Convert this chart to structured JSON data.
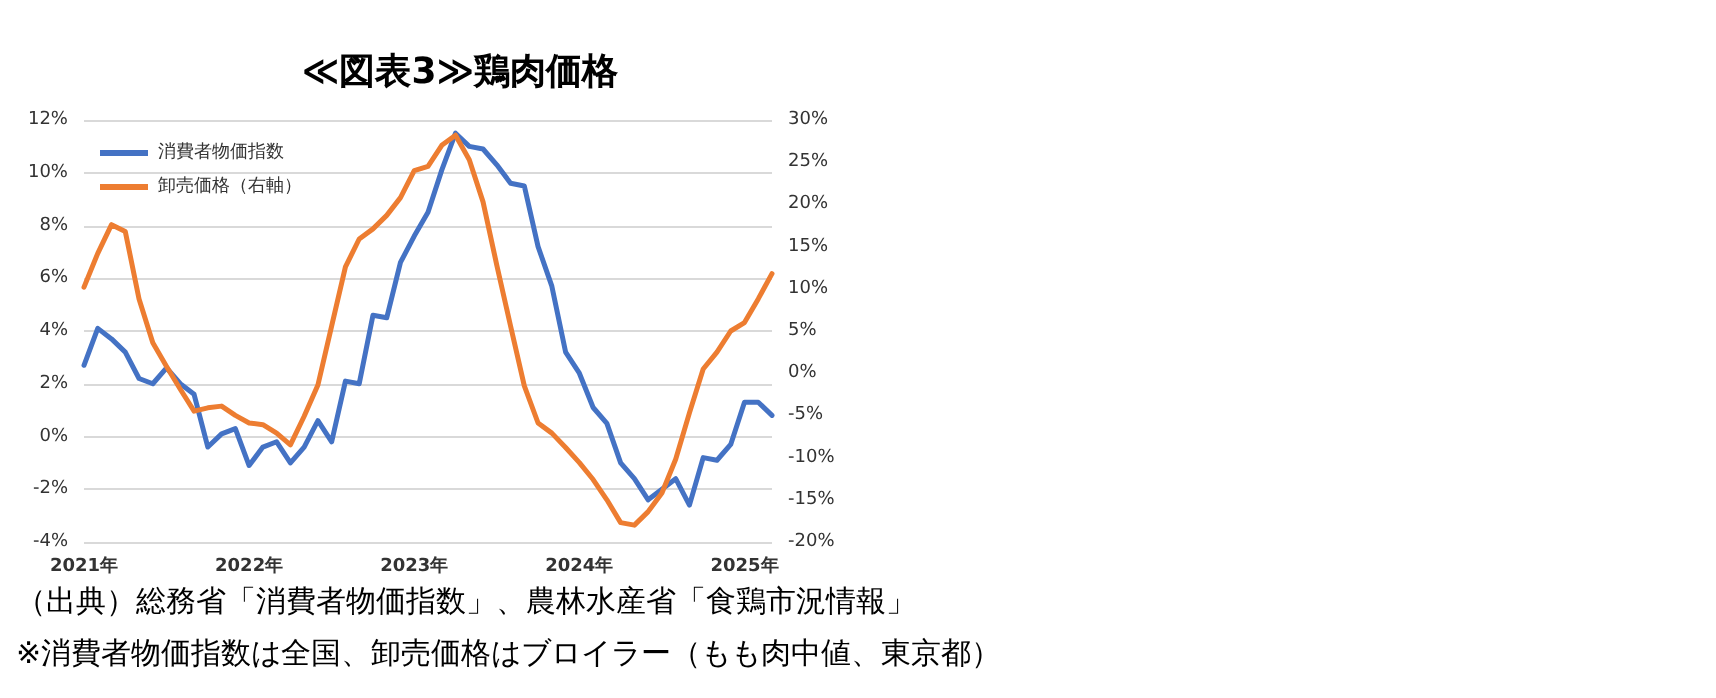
{
  "chart_data": {
    "type": "line",
    "title": "≪図表3≫鶏肉価格",
    "categories": [
      "2021年",
      null,
      null,
      null,
      null,
      null,
      null,
      null,
      null,
      null,
      null,
      null,
      "2022年",
      null,
      null,
      null,
      null,
      null,
      null,
      null,
      null,
      null,
      null,
      null,
      "2023年",
      null,
      null,
      null,
      null,
      null,
      null,
      null,
      null,
      null,
      null,
      null,
      "2024年",
      null,
      null,
      null,
      null,
      null,
      null,
      null,
      null,
      null,
      null,
      null,
      "2025年",
      null,
      null
    ],
    "series": [
      {
        "name": "消費者物価指数",
        "color": "#4472c4",
        "values": [
          2.7,
          4.1,
          3.7,
          3.2,
          2.2,
          2.0,
          2.6,
          2.0,
          1.6,
          -0.4,
          0.1,
          0.3,
          -1.1,
          -0.4,
          -0.2,
          -1.0,
          -0.4,
          0.6,
          -0.2,
          2.1,
          2.0,
          4.6,
          4.5,
          6.6,
          7.6,
          8.5,
          10.1,
          11.5,
          11.0,
          10.9,
          10.3,
          9.6,
          9.5,
          7.2,
          5.7,
          3.2,
          2.4,
          1.1,
          0.5,
          -1.0,
          -1.6,
          -2.4,
          -2.0,
          -1.6,
          -2.6,
          -0.8,
          -0.9,
          -0.3,
          1.3,
          1.3,
          0.8
        ]
      },
      {
        "name": "卸売価格（右軸）",
        "color": "#ed7d31",
        "axis": "y2",
        "values": [
          10.2,
          14.2,
          17.6,
          16.8,
          8.8,
          3.6,
          0.8,
          -1.9,
          -4.5,
          -4.1,
          -3.9,
          -5.0,
          -5.9,
          -6.1,
          -7.1,
          -8.5,
          -5.1,
          -1.4,
          5.6,
          12.6,
          15.9,
          17.1,
          18.7,
          20.8,
          24.0,
          24.5,
          27.0,
          28.2,
          25.3,
          20.3,
          12.8,
          5.6,
          -1.5,
          -5.9,
          -7.1,
          -8.8,
          -10.6,
          -12.6,
          -15.0,
          -17.7,
          -18.0,
          -16.4,
          -14.2,
          -10.2,
          -4.7,
          0.5,
          2.5,
          5.0,
          6.0,
          8.8,
          11.8
        ]
      }
    ],
    "ylim": [
      -4,
      12
    ],
    "yticks": [
      {
        "value": -4,
        "label": "-4%"
      },
      {
        "value": -2,
        "label": "-2%"
      },
      {
        "value": 0,
        "label": "0%"
      },
      {
        "value": 2,
        "label": "2%"
      },
      {
        "value": 4,
        "label": "4%"
      },
      {
        "value": 6,
        "label": "6%"
      },
      {
        "value": 8,
        "label": "8%"
      },
      {
        "value": 10,
        "label": "10%"
      },
      {
        "value": 12,
        "label": "12%"
      }
    ],
    "y2lim": [
      -20,
      30
    ],
    "y2ticks": [
      {
        "value": -20,
        "label": "-20%"
      },
      {
        "value": -15,
        "label": "-15%"
      },
      {
        "value": -10,
        "label": "-10%"
      },
      {
        "value": -5,
        "label": "-5%"
      },
      {
        "value": 0,
        "label": "0%"
      },
      {
        "value": 5,
        "label": "5%"
      },
      {
        "value": 10,
        "label": "10%"
      },
      {
        "value": 15,
        "label": "15%"
      },
      {
        "value": 20,
        "label": "20%"
      },
      {
        "value": 25,
        "label": "25%"
      },
      {
        "value": 30,
        "label": "30%"
      }
    ],
    "grid": "y",
    "legend": "top left",
    "marker": "none",
    "line_style": "solid",
    "annotations": [
      "（出典）総務省「消費者物価指数」、農林水産省「食鶏市況情報」",
      "※消費者物価指数は全国、卸売価格はブロイラー（もも肉中値、東京都）"
    ]
  }
}
